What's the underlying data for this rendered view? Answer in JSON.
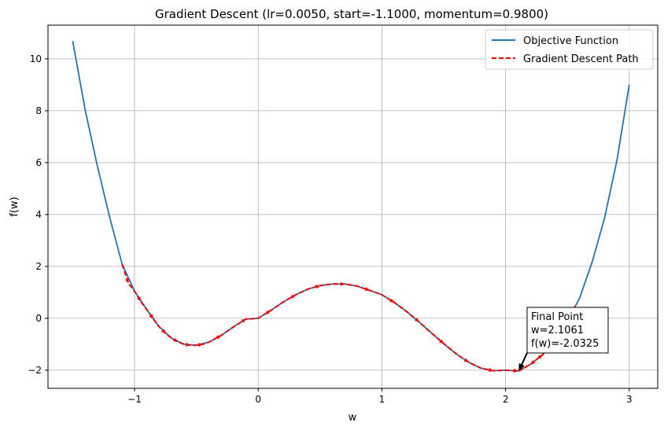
{
  "chart_data": {
    "type": "line",
    "title": "Gradient Descent (lr=0.0050, start=-1.1000, momentum=0.9800)",
    "xlabel": "w",
    "ylabel": "f(w)",
    "xlim": [
      -1.7,
      3.23
    ],
    "ylim": [
      -2.7,
      11.3
    ],
    "xticks": [
      -1,
      0,
      1,
      2,
      3
    ],
    "yticks": [
      -2,
      0,
      2,
      4,
      6,
      8,
      10
    ],
    "xtick_labels": [
      "−1",
      "0",
      "1",
      "2",
      "3"
    ],
    "ytick_labels": [
      "−2",
      "0",
      "2",
      "4",
      "6",
      "8",
      "10"
    ],
    "grid": true,
    "legend_position": "top-right",
    "series": [
      {
        "name": "Objective Function",
        "style": "solid",
        "color": "#1f77b4",
        "x": [
          -1.5,
          -1.4,
          -1.3,
          -1.2,
          -1.1,
          -1.0,
          -0.9,
          -0.8,
          -0.7,
          -0.6,
          -0.5,
          -0.4,
          -0.3,
          -0.2,
          -0.1,
          0.0,
          0.1,
          0.2,
          0.3,
          0.4,
          0.5,
          0.6,
          0.7,
          0.8,
          0.9,
          1.0,
          1.1,
          1.2,
          1.3,
          1.4,
          1.5,
          1.6,
          1.7,
          1.8,
          1.9,
          2.0,
          2.1,
          2.2,
          2.3,
          2.4,
          2.5,
          2.6,
          2.7,
          2.8,
          2.9,
          3.0
        ],
        "y": [
          10.69,
          8.04,
          5.85,
          3.87,
          2.08,
          1.05,
          0.33,
          -0.33,
          -0.77,
          -1.0,
          -1.04,
          -0.92,
          -0.66,
          -0.33,
          -0.03,
          0.0,
          0.3,
          0.62,
          0.9,
          1.12,
          1.26,
          1.32,
          1.32,
          1.24,
          1.08,
          0.91,
          0.61,
          0.26,
          -0.14,
          -0.56,
          -0.98,
          -1.37,
          -1.69,
          -1.92,
          -2.02,
          -2.0,
          -2.03,
          -1.78,
          -1.4,
          -0.75,
          -0.12,
          0.8,
          2.17,
          3.86,
          6.08,
          9.0
        ]
      },
      {
        "name": "Gradient Descent Path",
        "style": "dashed",
        "color": "#ff0000",
        "x": [
          -1.1,
          -1.05,
          -1.0,
          -0.95,
          -0.9,
          -0.85,
          -0.8,
          -0.75,
          -0.7,
          -0.65,
          -0.6,
          -0.55,
          -0.5,
          -0.45,
          -0.4,
          -0.3,
          -0.2,
          -0.1,
          0.0,
          0.1,
          0.2,
          0.3,
          0.4,
          0.5,
          0.6,
          0.7,
          0.8,
          0.9,
          1.0,
          1.1,
          1.2,
          1.3,
          1.4,
          1.5,
          1.6,
          1.7,
          1.8,
          1.9,
          2.0,
          2.1,
          2.2,
          2.3,
          2.4,
          2.5,
          2.56,
          2.45,
          2.3,
          2.2,
          2.1061
        ],
        "y": [
          2.08,
          1.35,
          1.05,
          0.65,
          0.33,
          -0.02,
          -0.33,
          -0.58,
          -0.77,
          -0.91,
          -1.0,
          -1.04,
          -1.04,
          -1.0,
          -0.92,
          -0.66,
          -0.33,
          -0.03,
          0.0,
          0.3,
          0.62,
          0.9,
          1.12,
          1.26,
          1.32,
          1.32,
          1.24,
          1.08,
          0.91,
          0.61,
          0.26,
          -0.14,
          -0.56,
          -0.98,
          -1.37,
          -1.69,
          -1.92,
          -2.02,
          -2.0,
          -2.03,
          -1.78,
          -1.4,
          -0.75,
          -0.12,
          0.45,
          -0.52,
          -1.4,
          -1.78,
          -2.0325
        ]
      }
    ],
    "annotation": {
      "lines": [
        "Final Point",
        "w=2.1061",
        "f(w)=-2.0325"
      ],
      "point": {
        "x": 2.1061,
        "y": -2.0325
      }
    }
  }
}
